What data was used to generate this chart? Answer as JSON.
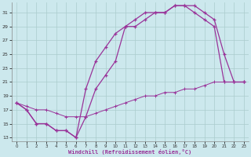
{
  "bg_color": "#cce8ed",
  "grid_color": "#aacccc",
  "line_color": "#993399",
  "xlabel": "Windchill (Refroidissement éolien,°C)",
  "xlim": [
    -0.5,
    23.5
  ],
  "ylim": [
    12.5,
    32.5
  ],
  "xticks": [
    0,
    1,
    2,
    3,
    4,
    5,
    6,
    7,
    8,
    9,
    10,
    11,
    12,
    13,
    14,
    15,
    16,
    17,
    18,
    19,
    20,
    21,
    22,
    23
  ],
  "yticks": [
    13,
    15,
    17,
    19,
    21,
    23,
    25,
    27,
    29,
    31
  ],
  "line1_x": [
    0,
    1,
    2,
    3,
    4,
    5,
    6,
    7,
    8,
    9,
    10,
    11,
    12,
    13,
    14,
    15,
    16,
    17,
    18,
    19,
    20,
    21,
    22,
    23
  ],
  "line1_y": [
    18,
    17,
    15,
    15,
    14,
    14,
    13,
    16,
    20,
    22,
    24,
    29,
    29,
    30,
    31,
    31,
    32,
    32,
    32,
    31,
    30,
    25,
    21,
    21
  ],
  "line2_x": [
    0,
    1,
    2,
    3,
    4,
    5,
    6,
    7,
    8,
    9,
    10,
    11,
    12,
    13,
    14,
    15,
    16,
    17,
    18,
    19,
    20,
    21,
    22,
    23
  ],
  "line2_y": [
    18,
    17,
    15,
    15,
    14,
    14,
    13,
    20,
    24,
    26,
    28,
    29,
    30,
    31,
    31,
    31,
    32,
    32,
    31,
    30,
    29,
    21,
    21,
    21
  ],
  "line3_x": [
    0,
    1,
    2,
    3,
    4,
    5,
    6,
    7,
    8,
    9,
    10,
    11,
    12,
    13,
    14,
    15,
    16,
    17,
    18,
    19,
    20,
    21,
    22,
    23
  ],
  "line3_y": [
    18,
    17.5,
    17,
    17,
    16.5,
    16,
    16,
    16,
    16.5,
    17,
    17.5,
    18,
    18.5,
    19,
    19,
    19.5,
    19.5,
    20,
    20,
    20.5,
    21,
    21,
    21,
    21
  ]
}
